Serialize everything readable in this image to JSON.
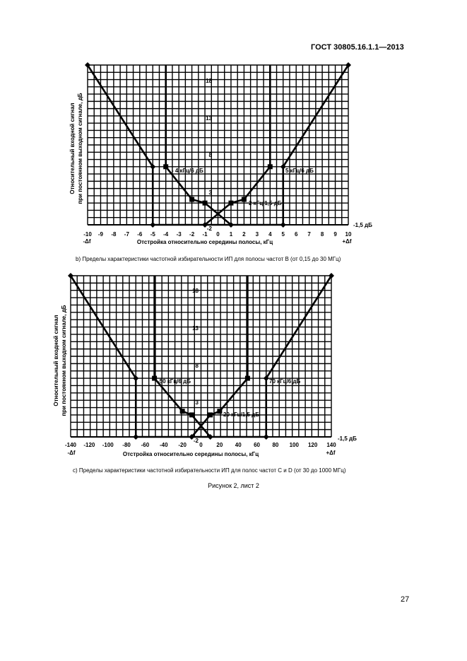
{
  "header": {
    "standard": "ГОСТ  30805.16.1.1—2013"
  },
  "charts": [
    {
      "ylabel1": "Относительный входной сигнал",
      "ylabel2": "при постоянном выходном сигнале, дБ",
      "xlabel": "Отстройка относительно середины полосы, кГц",
      "xticks": [
        "-10",
        "-9",
        "-8",
        "-7",
        "-6",
        "-5",
        "-4",
        "-3",
        "-2",
        "-1",
        "0",
        "1",
        "2",
        "3",
        "4",
        "5",
        "6",
        "7",
        "8",
        "9",
        "10"
      ],
      "yticks": [
        "18",
        "13",
        "8",
        "3",
        "-2"
      ],
      "xleft_label": "-Δf",
      "xright_label": "+Δf",
      "ref_label": "-1,5 дБ",
      "annotations": [
        "- 4 кГц/6 дБ",
        "5 кГц/6 дБ",
        "2 кГц/1,5 дБ"
      ],
      "caption": "b) Пределы характеристики частотной избирательности ИП для полосы частот В (от 0,15 до 30 МГц)"
    },
    {
      "ylabel1": "Относительный входной сигнал",
      "ylabel2": "при постоянном выходном сигнале, дБ",
      "xlabel": "Отстройка относительно середины полосы, кГц",
      "xticks": [
        "-140",
        "-120",
        "-100",
        "-80",
        "-60",
        "-40",
        "-20",
        "0",
        "20",
        "40",
        "60",
        "80",
        "100",
        "120",
        "140"
      ],
      "yticks": [
        "18",
        "13",
        "8",
        "3",
        "-2"
      ],
      "xleft_label": "-Δf",
      "xright_label": "+Δf",
      "ref_label": "-1,5 дБ",
      "annotations": [
        "-50 кГц/6 дБ",
        "70 кГц/6 дБ",
        "20 кГц/1,5 дБ"
      ],
      "caption": "c) Пределы характеристики частотной избирательности ИП для полос частот С и D (от 30 до 1000 МГц)"
    }
  ],
  "figure_caption": "Рисунок 2, лист 2",
  "page_number": "27"
}
